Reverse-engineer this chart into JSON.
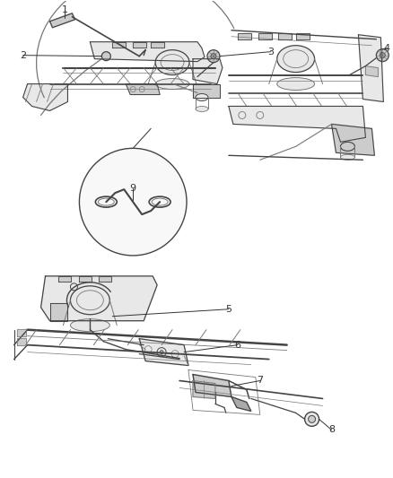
{
  "bg_color": "#ffffff",
  "line_color": "#777777",
  "dark_line": "#444444",
  "text_color": "#333333",
  "fill_light": "#e8e8e8",
  "fill_mid": "#cccccc",
  "fill_dark": "#aaaaaa",
  "callout_nums": [
    "1",
    "2",
    "3",
    "4",
    "5",
    "6",
    "7",
    "8",
    "9"
  ],
  "figsize": [
    4.39,
    5.33
  ],
  "dpi": 100
}
